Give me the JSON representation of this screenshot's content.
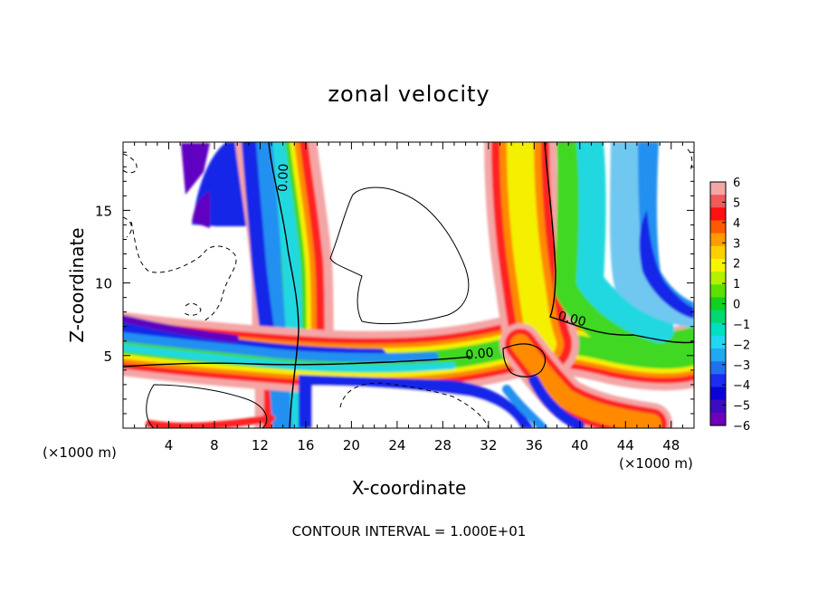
{
  "chart_data": {
    "type": "heatmap",
    "title": "zonal velocity",
    "xlabel": "X-coordinate",
    "ylabel": "Z-coordinate",
    "x_unit_label_left": "(×1000 m)",
    "x_unit_label_right": "(×1000 m)",
    "footer": "CONTOUR INTERVAL = 1.000E+01",
    "xlim": [
      0,
      50
    ],
    "ylim": [
      0,
      19.7
    ],
    "x_ticks": [
      4,
      8,
      12,
      16,
      20,
      24,
      28,
      32,
      36,
      40,
      44,
      48
    ],
    "y_ticks": [
      5,
      10,
      15
    ],
    "colorbar": {
      "min": -6,
      "max": 6,
      "ticks": [
        "6",
        "5",
        "4",
        "3",
        "2",
        "1",
        "0",
        "−1",
        "−2",
        "−3",
        "−4",
        "−5",
        "−6"
      ],
      "colors": [
        "#f4a6a6",
        "#ef5a5a",
        "#ff1010",
        "#ff5a00",
        "#ff9a00",
        "#ffd000",
        "#f6f600",
        "#b4f000",
        "#5ce000",
        "#10d020",
        "#00d870",
        "#00e0c0",
        "#20d8f0",
        "#20a8f0",
        "#2070f0",
        "#1c2cf0",
        "#0c00d8",
        "#3c0cc0",
        "#7000b8"
      ]
    },
    "contour_labels": [
      "0.00",
      "0.00",
      "0.00"
    ]
  }
}
